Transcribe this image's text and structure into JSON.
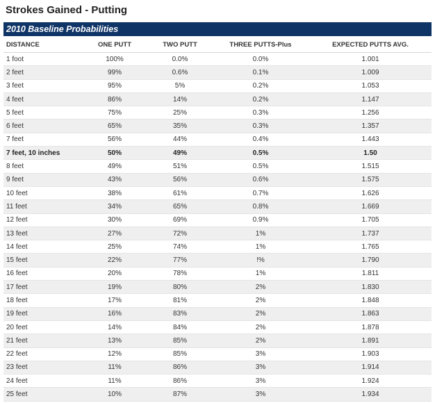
{
  "page": {
    "title": "Strokes Gained - Putting",
    "banner": "2010 Baseline Probabilities"
  },
  "table": {
    "headers": [
      "DISTANCE",
      "ONE PUTT",
      "TWO PUTT",
      "THREE PUTTS-Plus",
      "EXPECTED PUTTS AVG."
    ],
    "rows": [
      {
        "distance": "1 foot",
        "one_putt": "100%",
        "two_putt": "0.0%",
        "three_putts": "0.0%",
        "expected": "1.001",
        "highlight": false
      },
      {
        "distance": "2 feet",
        "one_putt": "99%",
        "two_putt": "0.6%",
        "three_putts": "0.1%",
        "expected": "1.009",
        "highlight": false
      },
      {
        "distance": "3 feet",
        "one_putt": "95%",
        "two_putt": "5%",
        "three_putts": "0.2%",
        "expected": "1.053",
        "highlight": false
      },
      {
        "distance": "4 feet",
        "one_putt": "86%",
        "two_putt": "14%",
        "three_putts": "0.2%",
        "expected": "1.147",
        "highlight": false
      },
      {
        "distance": "5 feet",
        "one_putt": "75%",
        "two_putt": "25%",
        "three_putts": "0.3%",
        "expected": "1.256",
        "highlight": false
      },
      {
        "distance": "6 feet",
        "one_putt": "65%",
        "two_putt": "35%",
        "three_putts": "0.3%",
        "expected": "1.357",
        "highlight": false
      },
      {
        "distance": "7 feet",
        "one_putt": "56%",
        "two_putt": "44%",
        "three_putts": "0.4%",
        "expected": "1.443",
        "highlight": false
      },
      {
        "distance": "7 feet, 10 inches",
        "one_putt": "50%",
        "two_putt": "49%",
        "three_putts": "0.5%",
        "expected": "1.50",
        "highlight": true
      },
      {
        "distance": "8 feet",
        "one_putt": "49%",
        "two_putt": "51%",
        "three_putts": "0.5%",
        "expected": "1.515",
        "highlight": false
      },
      {
        "distance": "9 feet",
        "one_putt": "43%",
        "two_putt": "56%",
        "three_putts": "0.6%",
        "expected": "1.575",
        "highlight": false
      },
      {
        "distance": "10 feet",
        "one_putt": "38%",
        "two_putt": "61%",
        "three_putts": "0.7%",
        "expected": "1.626",
        "highlight": false
      },
      {
        "distance": "11 feet",
        "one_putt": "34%",
        "two_putt": "65%",
        "three_putts": "0.8%",
        "expected": "1.669",
        "highlight": false
      },
      {
        "distance": "12 feet",
        "one_putt": "30%",
        "two_putt": "69%",
        "three_putts": "0.9%",
        "expected": "1.705",
        "highlight": false
      },
      {
        "distance": "13 feet",
        "one_putt": "27%",
        "two_putt": "72%",
        "three_putts": "1%",
        "expected": "1.737",
        "highlight": false
      },
      {
        "distance": "14 feet",
        "one_putt": "25%",
        "two_putt": "74%",
        "three_putts": "1%",
        "expected": "1.765",
        "highlight": false
      },
      {
        "distance": "15 feet",
        "one_putt": "22%",
        "two_putt": "77%",
        "three_putts": "!%",
        "expected": "1.790",
        "highlight": false
      },
      {
        "distance": "16 feet",
        "one_putt": "20%",
        "two_putt": "78%",
        "three_putts": "1%",
        "expected": "1.811",
        "highlight": false
      },
      {
        "distance": "17 feet",
        "one_putt": "19%",
        "two_putt": "80%",
        "three_putts": "2%",
        "expected": "1.830",
        "highlight": false
      },
      {
        "distance": "18 feet",
        "one_putt": "17%",
        "two_putt": "81%",
        "three_putts": "2%",
        "expected": "1.848",
        "highlight": false
      },
      {
        "distance": "19 feet",
        "one_putt": "16%",
        "two_putt": "83%",
        "three_putts": "2%",
        "expected": "1.863",
        "highlight": false
      },
      {
        "distance": "20 feet",
        "one_putt": "14%",
        "two_putt": "84%",
        "three_putts": "2%",
        "expected": "1.878",
        "highlight": false
      },
      {
        "distance": "21 feet",
        "one_putt": "13%",
        "two_putt": "85%",
        "three_putts": "2%",
        "expected": "1.891",
        "highlight": false
      },
      {
        "distance": "22 feet",
        "one_putt": "12%",
        "two_putt": "85%",
        "three_putts": "3%",
        "expected": "1.903",
        "highlight": false
      },
      {
        "distance": "23 feet",
        "one_putt": "11%",
        "two_putt": "86%",
        "three_putts": "3%",
        "expected": "1.914",
        "highlight": false
      },
      {
        "distance": "24 feet",
        "one_putt": "11%",
        "two_putt": "86%",
        "three_putts": "3%",
        "expected": "1.924",
        "highlight": false
      },
      {
        "distance": "25 feet",
        "one_putt": "10%",
        "two_putt": "87%",
        "three_putts": "3%",
        "expected": "1.934",
        "highlight": false
      }
    ]
  },
  "colors": {
    "banner_bg": "#0f3466",
    "row_alt_bg": "#efefef"
  }
}
